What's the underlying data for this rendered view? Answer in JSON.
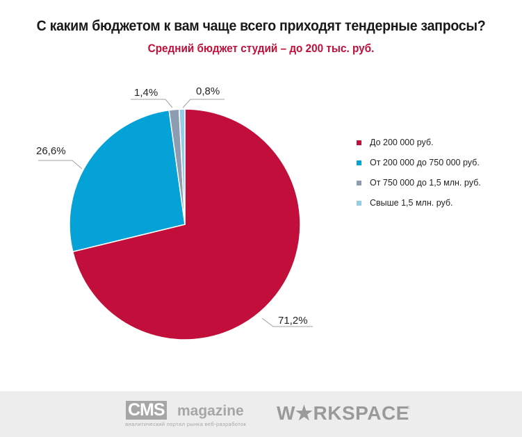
{
  "header": {
    "title": "С каким бюджетом к вам чаще всего приходят тендерные запросы?",
    "subtitle": "Средний бюджет студий – до 200 тыс. руб."
  },
  "chart_data": {
    "type": "pie",
    "title": "С каким бюджетом к вам чаще всего приходят тендерные запросы?",
    "subtitle": "Средний бюджет студий – до 200 тыс. руб.",
    "categories": [
      "До 200 000 руб.",
      "От 200 000 до 750 000 руб.",
      "От 750 000 до 1,5 млн. руб.",
      "Свыше 1,5 млн. руб."
    ],
    "values": [
      71.2,
      26.6,
      1.4,
      0.8
    ],
    "labels": [
      "71,2%",
      "26,6%",
      "1,4%",
      "0,8%"
    ],
    "colors": [
      "#c20e3a",
      "#04a2d6",
      "#8d9bb3",
      "#94cce8"
    ],
    "legend_position": "right",
    "start_angle": "12 o'clock, clockwise"
  },
  "legend": {
    "items": [
      {
        "label": "До 200 000 руб.",
        "color": "#c20e3a"
      },
      {
        "label": "От 200 000 до 750 000 руб.",
        "color": "#04a2d6"
      },
      {
        "label": "От 750 000 до 1,5 млн. руб.",
        "color": "#8d9bb3"
      },
      {
        "label": "Свыше 1,5 млн. руб.",
        "color": "#94cce8"
      }
    ]
  },
  "footer": {
    "cms_logo_box": "CMS",
    "cms_logo_word": "magazine",
    "cms_tagline": "аналитический портал рынка веб-разработок",
    "workspace_logo": "W★RKSPACE",
    "workspace_reg": "®"
  }
}
